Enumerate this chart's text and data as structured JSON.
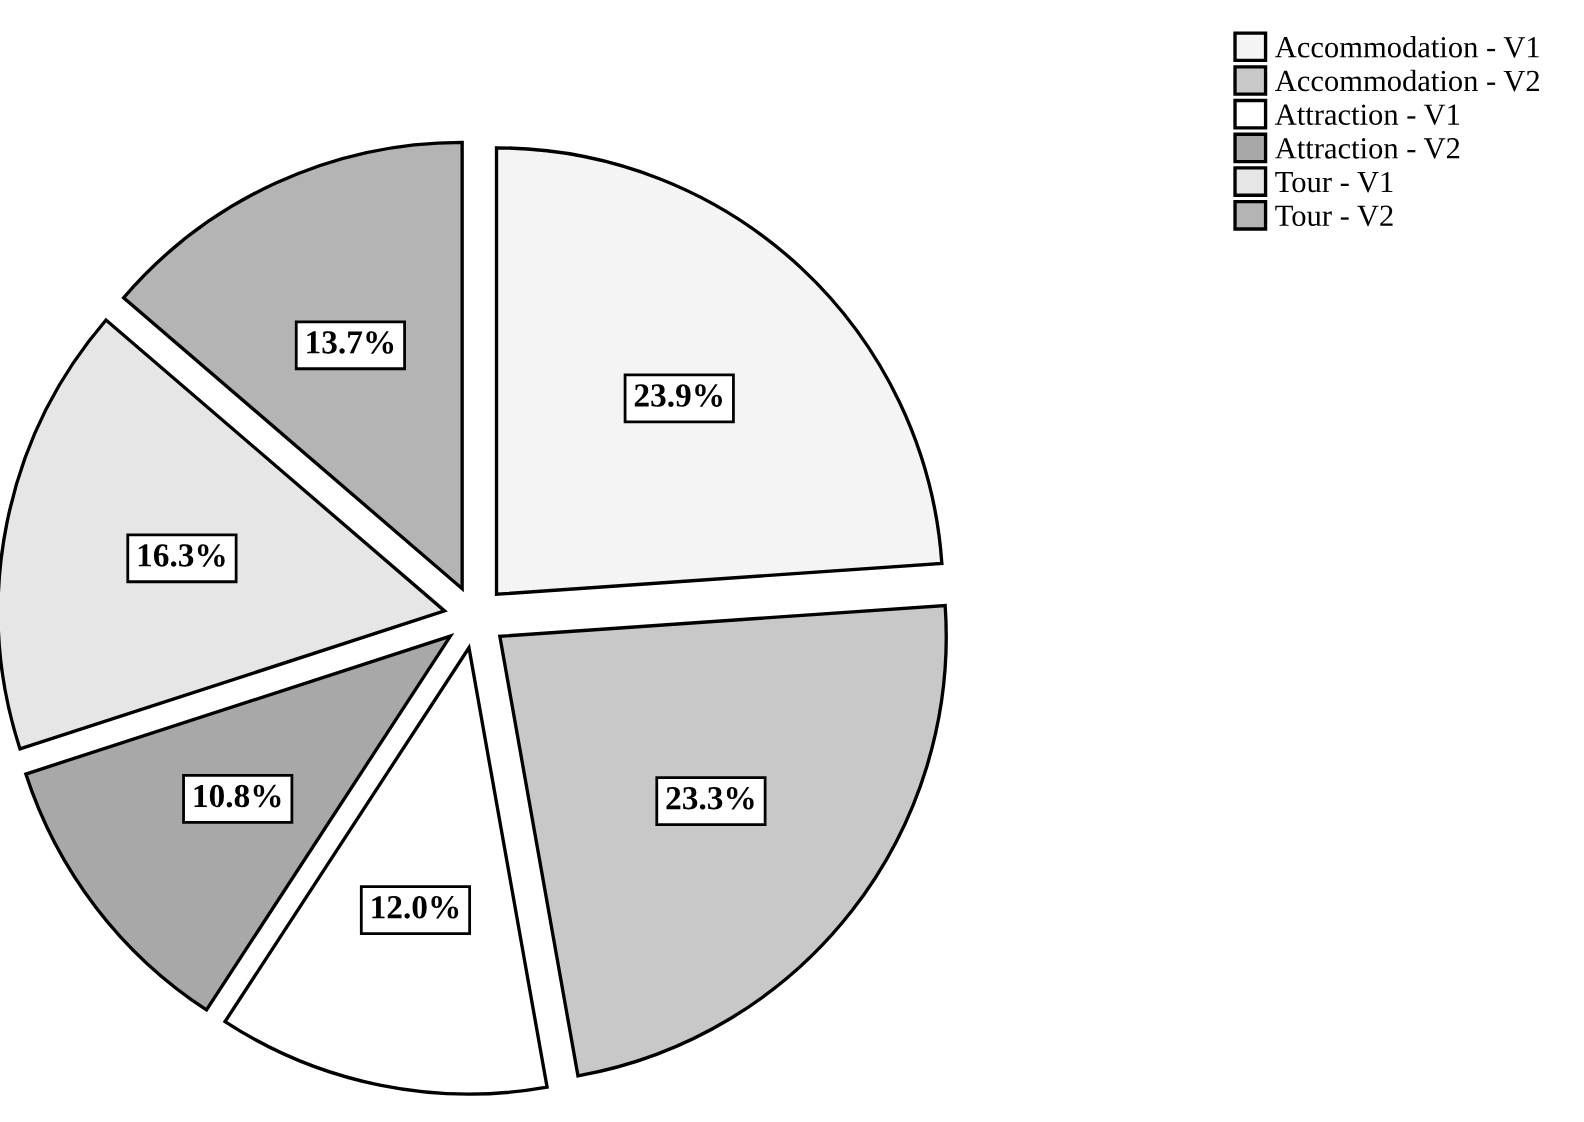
{
  "chart_data": {
    "type": "pie",
    "categories": [
      "Accommodation - V1",
      "Accommodation - V2",
      "Attraction - V1",
      "Attraction - V2",
      "Tour - V1",
      "Tour - V2"
    ],
    "values": [
      23.9,
      23.3,
      12.0,
      10.8,
      16.3,
      13.7
    ],
    "value_labels": [
      "23.9%",
      "23.3%",
      "12.0%",
      "10.8%",
      "16.3%",
      "13.7%"
    ],
    "colors": [
      "#f4f4f4",
      "#c8c8c8",
      "#ffffff",
      "#a8a8a8",
      "#e6e6e6",
      "#b4b4b4"
    ],
    "legend": "top right"
  }
}
